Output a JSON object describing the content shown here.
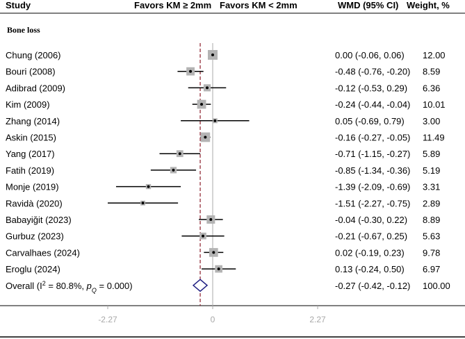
{
  "chart_data": {
    "type": "forest",
    "columns": {
      "study": "Study",
      "favors_left": "Favors KM ≥ 2mm",
      "favors_right": "Favors KM < 2mm",
      "effect": "WMD (95% CI)",
      "weight": "Weight, %"
    },
    "subgroup": "Bone loss",
    "studies": [
      {
        "name": "Chung (2006)",
        "wmd": 0.0,
        "lo": -0.06,
        "hi": 0.06,
        "ci_text": "0.00 (-0.06, 0.06)",
        "weight": 12.0,
        "weight_text": "12.00"
      },
      {
        "name": "Bouri  (2008)",
        "wmd": -0.48,
        "lo": -0.76,
        "hi": -0.2,
        "ci_text": "-0.48 (-0.76, -0.20)",
        "weight": 8.59,
        "weight_text": "8.59"
      },
      {
        "name": "Adibrad  (2009)",
        "wmd": -0.12,
        "lo": -0.53,
        "hi": 0.29,
        "ci_text": "-0.12 (-0.53, 0.29)",
        "weight": 6.36,
        "weight_text": "6.36"
      },
      {
        "name": "Kim  (2009)",
        "wmd": -0.24,
        "lo": -0.44,
        "hi": -0.04,
        "ci_text": "-0.24 (-0.44, -0.04)",
        "weight": 10.01,
        "weight_text": "10.01"
      },
      {
        "name": "Zhang (2014)",
        "wmd": 0.05,
        "lo": -0.69,
        "hi": 0.79,
        "ci_text": "0.05 (-0.69, 0.79)",
        "weight": 3.0,
        "weight_text": "3.00"
      },
      {
        "name": "Askin  (2015)",
        "wmd": -0.16,
        "lo": -0.27,
        "hi": -0.05,
        "ci_text": "-0.16 (-0.27, -0.05)",
        "weight": 11.49,
        "weight_text": "11.49"
      },
      {
        "name": "Yang (2017)",
        "wmd": -0.71,
        "lo": -1.15,
        "hi": -0.27,
        "ci_text": "-0.71 (-1.15, -0.27)",
        "weight": 5.89,
        "weight_text": "5.89"
      },
      {
        "name": "Fatih (2019)",
        "wmd": -0.85,
        "lo": -1.34,
        "hi": -0.36,
        "ci_text": "-0.85 (-1.34, -0.36)",
        "weight": 5.19,
        "weight_text": "5.19"
      },
      {
        "name": "Monje (2019)",
        "wmd": -1.39,
        "lo": -2.09,
        "hi": -0.69,
        "ci_text": "-1.39 (-2.09, -0.69)",
        "weight": 3.31,
        "weight_text": "3.31"
      },
      {
        "name": "Ravidà (2020)",
        "wmd": -1.51,
        "lo": -2.27,
        "hi": -0.75,
        "ci_text": "-1.51 (-2.27, -0.75)",
        "weight": 2.89,
        "weight_text": "2.89"
      },
      {
        "name": "Babayiğit (2023)",
        "wmd": -0.04,
        "lo": -0.3,
        "hi": 0.22,
        "ci_text": "-0.04 (-0.30, 0.22)",
        "weight": 8.89,
        "weight_text": "8.89"
      },
      {
        "name": "Gurbuz (2023)",
        "wmd": -0.21,
        "lo": -0.67,
        "hi": 0.25,
        "ci_text": "-0.21 (-0.67, 0.25)",
        "weight": 5.63,
        "weight_text": "5.63"
      },
      {
        "name": "Carvalhaes (2024)",
        "wmd": 0.02,
        "lo": -0.19,
        "hi": 0.23,
        "ci_text": "0.02 (-0.19, 0.23)",
        "weight": 9.78,
        "weight_text": "9.78"
      },
      {
        "name": "Eroglu (2024)",
        "wmd": 0.13,
        "lo": -0.24,
        "hi": 0.5,
        "ci_text": "0.13 (-0.24, 0.50)",
        "weight": 6.97,
        "weight_text": "6.97"
      }
    ],
    "overall": {
      "label_prefix": "Overall  (I",
      "i2_exp": "2",
      "i2_text": " = 80.8%, ",
      "p_letter": "p",
      "p_sub": "Q",
      "p_text": " = 0.000)",
      "wmd": -0.27,
      "lo": -0.42,
      "hi": -0.12,
      "ci_text": "-0.27 (-0.42, -0.12)",
      "weight_text": "100.00"
    },
    "xaxis": {
      "min": -2.27,
      "max": 2.27,
      "ticks": [
        -2.27,
        0,
        2.27
      ],
      "tick_labels": [
        "-2.27",
        "0",
        "2.27"
      ]
    },
    "null_line": 0,
    "colors": {
      "ci_line": "#000000",
      "box": "#b4b4b4",
      "diamond": "#1c1c80",
      "ref_line": "#a8a8a8",
      "pooled_line": "#8b1c2a",
      "axis_text": "#a8a8a8"
    }
  }
}
